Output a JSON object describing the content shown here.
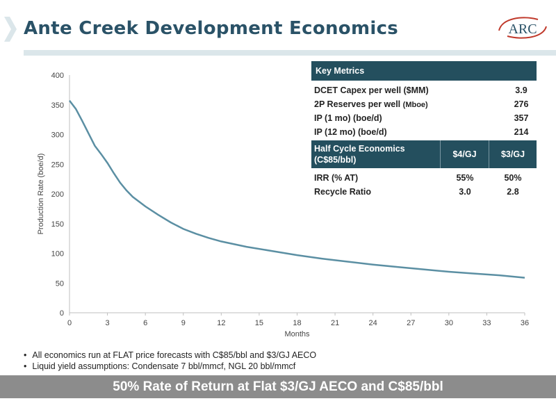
{
  "slide": {
    "title": "Ante Creek Development Economics",
    "logo_text": "ARC",
    "notes": [
      "All economics run at FLAT price forecasts with C$85/bbl and $3/GJ AECO",
      "Liquid yield assumptions:  Condensate 7 bbl/mmcf, NGL 20 bbl/mmcf"
    ],
    "footer": "50% Rate of Return at Flat $3/GJ AECO and C$85/bbl"
  },
  "metrics": {
    "header": "Key Metrics",
    "rows": [
      {
        "label": "DCET Capex per well ($MM)",
        "value": "3.9"
      },
      {
        "label": "2P Reserves  per well",
        "label_small": "(Mboe)",
        "value": "276"
      },
      {
        "label": "IP (1 mo) (boe/d)",
        "value": "357"
      },
      {
        "label": "IP (12 mo) (boe/d)",
        "value": "214"
      }
    ],
    "half_cycle": {
      "header_line1": "Half Cycle Economics",
      "header_line2": "(C$85/bbl)",
      "col1": "$4/GJ",
      "col2": "$3/GJ",
      "rows": [
        {
          "label": "IRR (% AT)",
          "v1": "55%",
          "v2": "50%"
        },
        {
          "label": "Recycle Ratio",
          "v1": "3.0",
          "v2": "2.8"
        }
      ]
    }
  },
  "colors": {
    "line": "#5b8fa3",
    "title": "#2a5267",
    "table_header": "#244f5e",
    "footer_bg": "#8c8c8c"
  },
  "chart_data": {
    "type": "line",
    "xlabel": "Months",
    "ylabel": "Production Rate (boe/d)",
    "xlim": [
      0,
      36
    ],
    "ylim": [
      0,
      400
    ],
    "xticks": [
      0,
      3,
      6,
      9,
      12,
      15,
      18,
      21,
      24,
      27,
      30,
      33,
      36
    ],
    "yticks": [
      0,
      50,
      100,
      150,
      200,
      250,
      300,
      350,
      400
    ],
    "grid": false,
    "series": [
      {
        "x": [
          0,
          0.5,
          1,
          1.5,
          2,
          2.5,
          3,
          3.5,
          4,
          4.5,
          5,
          6,
          7,
          8,
          9,
          10,
          11,
          12,
          14,
          16,
          18,
          20,
          22,
          24,
          26,
          28,
          30,
          32,
          34,
          36
        ],
        "y": [
          357,
          343,
          323,
          302,
          281,
          267,
          252,
          235,
          219,
          206,
          195,
          179,
          165,
          152,
          141,
          133,
          126,
          120,
          111,
          104,
          97,
          91,
          86,
          81,
          77,
          73,
          69,
          66,
          63,
          59
        ]
      }
    ]
  }
}
